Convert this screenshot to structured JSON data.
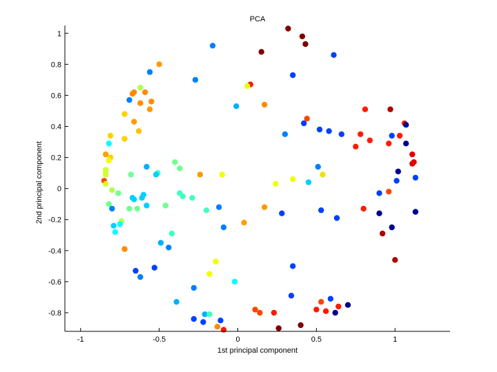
{
  "chart_data": {
    "type": "scatter",
    "title": "PCA",
    "xlabel": "1st principal component",
    "ylabel": "2nd principal component",
    "xlim": [
      -1.1,
      1.35
    ],
    "ylim": [
      -0.92,
      1.05
    ],
    "xticks": [
      -1,
      -0.5,
      0,
      0.5,
      1
    ],
    "yticks": [
      -0.8,
      -0.6,
      -0.4,
      -0.2,
      0,
      0.2,
      0.4,
      0.6,
      0.8,
      1
    ],
    "xtick_labels": [
      "-1",
      "-0.5",
      "0",
      "0.5",
      "1"
    ],
    "ytick_labels": [
      "-0.8",
      "-0.6",
      "-0.4",
      "-0.2",
      "0",
      "0.2",
      "0.4",
      "0.6",
      "0.8",
      "1"
    ],
    "grid": false,
    "colormap": "jet",
    "colors": {
      "dark_red": "#800000",
      "red": "#ff1a00",
      "orange_red": "#ff4500",
      "orange": "#ff9a00",
      "yellow": "#f0ff00",
      "cyan": "#00ffff",
      "light_blue": "#00b0ff",
      "blue": "#0040ff",
      "dark_blue": "#000090"
    },
    "points": [
      {
        "x": 0.32,
        "y": 1.03,
        "c": "#800000"
      },
      {
        "x": 0.41,
        "y": 0.98,
        "c": "#800000"
      },
      {
        "x": 0.43,
        "y": 0.93,
        "c": "#800000"
      },
      {
        "x": 0.15,
        "y": 0.88,
        "c": "#800000"
      },
      {
        "x": 0.61,
        "y": 0.86,
        "c": "#0040ff"
      },
      {
        "x": -0.16,
        "y": 0.92,
        "c": "#0080ff"
      },
      {
        "x": -0.5,
        "y": 0.8,
        "c": "#ff9a00"
      },
      {
        "x": -0.56,
        "y": 0.75,
        "c": "#0080ff"
      },
      {
        "x": -0.27,
        "y": 0.7,
        "c": "#0080ff"
      },
      {
        "x": 0.35,
        "y": 0.73,
        "c": "#0040ff"
      },
      {
        "x": 0.08,
        "y": 0.67,
        "c": "#ff1a00"
      },
      {
        "x": 0.06,
        "y": 0.66,
        "c": "#f0ff00"
      },
      {
        "x": -0.62,
        "y": 0.65,
        "c": "#b0ff50"
      },
      {
        "x": -0.66,
        "y": 0.62,
        "c": "#ff8a00"
      },
      {
        "x": -0.67,
        "y": 0.61,
        "c": "#ff8a00"
      },
      {
        "x": -0.59,
        "y": 0.62,
        "c": "#ff8a00"
      },
      {
        "x": -0.69,
        "y": 0.57,
        "c": "#0080ff"
      },
      {
        "x": -0.55,
        "y": 0.56,
        "c": "#ff8a00"
      },
      {
        "x": -0.62,
        "y": 0.55,
        "c": "#ff8a00"
      },
      {
        "x": -0.56,
        "y": 0.51,
        "c": "#ff9a00"
      },
      {
        "x": -0.01,
        "y": 0.53,
        "c": "#00b0ff"
      },
      {
        "x": 0.17,
        "y": 0.54,
        "c": "#ff8a00"
      },
      {
        "x": 0.81,
        "y": 0.51,
        "c": "#ff1a00"
      },
      {
        "x": 0.97,
        "y": 0.51,
        "c": "#b00000"
      },
      {
        "x": -0.72,
        "y": 0.48,
        "c": "#ffd000"
      },
      {
        "x": 0.44,
        "y": 0.45,
        "c": "#ff4500"
      },
      {
        "x": -0.66,
        "y": 0.43,
        "c": "#ff9a00"
      },
      {
        "x": 0.42,
        "y": 0.42,
        "c": "#0040ff"
      },
      {
        "x": 1.06,
        "y": 0.42,
        "c": "#ff1a00"
      },
      {
        "x": 1.07,
        "y": 0.41,
        "c": "#000090"
      },
      {
        "x": 0.52,
        "y": 0.38,
        "c": "#0040ff"
      },
      {
        "x": 0.58,
        "y": 0.37,
        "c": "#0040ff"
      },
      {
        "x": -0.63,
        "y": 0.37,
        "c": "#ffc000"
      },
      {
        "x": 0.78,
        "y": 0.35,
        "c": "#ff1a00"
      },
      {
        "x": 0.3,
        "y": 0.35,
        "c": "#0080ff"
      },
      {
        "x": 0.66,
        "y": 0.35,
        "c": "#0040ff"
      },
      {
        "x": 0.98,
        "y": 0.34,
        "c": "#0040ff"
      },
      {
        "x": 1.03,
        "y": 0.34,
        "c": "#ff1a00"
      },
      {
        "x": -0.81,
        "y": 0.34,
        "c": "#ffd000"
      },
      {
        "x": -0.72,
        "y": 0.32,
        "c": "#ffd000"
      },
      {
        "x": 0.84,
        "y": 0.31,
        "c": "#ff1a00"
      },
      {
        "x": 0.96,
        "y": 0.29,
        "c": "#ff1a00"
      },
      {
        "x": 1.07,
        "y": 0.29,
        "c": "#000090"
      },
      {
        "x": -0.82,
        "y": 0.29,
        "c": "#00ffff"
      },
      {
        "x": 0.75,
        "y": 0.27,
        "c": "#ff1a00"
      },
      {
        "x": -0.84,
        "y": 0.22,
        "c": "#ffa000"
      },
      {
        "x": 1.11,
        "y": 0.22,
        "c": "#e00000"
      },
      {
        "x": -0.81,
        "y": 0.2,
        "c": "#ffd000"
      },
      {
        "x": -0.82,
        "y": 0.18,
        "c": "#f0ff00"
      },
      {
        "x": -0.4,
        "y": 0.17,
        "c": "#70ff90"
      },
      {
        "x": 1.12,
        "y": 0.17,
        "c": "#e00000"
      },
      {
        "x": 1.11,
        "y": 0.16,
        "c": "#e00000"
      },
      {
        "x": -0.58,
        "y": 0.14,
        "c": "#00b0ff"
      },
      {
        "x": 0.51,
        "y": 0.14,
        "c": "#0080ff"
      },
      {
        "x": -0.37,
        "y": 0.13,
        "c": "#70ff90"
      },
      {
        "x": -0.84,
        "y": 0.12,
        "c": "#d0ff30"
      },
      {
        "x": 1.02,
        "y": 0.11,
        "c": "#000090"
      },
      {
        "x": -0.84,
        "y": 0.1,
        "c": "#d0ff30"
      },
      {
        "x": -0.51,
        "y": 0.1,
        "c": "#40ffc0"
      },
      {
        "x": -0.52,
        "y": 0.09,
        "c": "#00d0ff"
      },
      {
        "x": -0.68,
        "y": 0.09,
        "c": "#70ff90"
      },
      {
        "x": -0.84,
        "y": 0.09,
        "c": "#d0ff30"
      },
      {
        "x": 0.54,
        "y": 0.09,
        "c": "#f0e000"
      },
      {
        "x": -0.24,
        "y": 0.09,
        "c": "#ff9a00"
      },
      {
        "x": -0.1,
        "y": 0.09,
        "c": "#f0ff00"
      },
      {
        "x": 0.35,
        "y": 0.06,
        "c": "#f0ff00"
      },
      {
        "x": -0.85,
        "y": 0.05,
        "c": "#ff4500"
      },
      {
        "x": 1.01,
        "y": 0.05,
        "c": "#0040ff"
      },
      {
        "x": 0.45,
        "y": 0.04,
        "c": "#00d0ff"
      },
      {
        "x": 0.24,
        "y": 0.03,
        "c": "#f0ff00"
      },
      {
        "x": -0.84,
        "y": 0.03,
        "c": "#d0ff30"
      },
      {
        "x": -0.8,
        "y": -0.01,
        "c": "#b0ff50"
      },
      {
        "x": 0.96,
        "y": -0.02,
        "c": "#ff4500"
      },
      {
        "x": -0.76,
        "y": -0.03,
        "c": "#70ff90"
      },
      {
        "x": -0.37,
        "y": -0.03,
        "c": "#40ffc0"
      },
      {
        "x": -0.35,
        "y": -0.05,
        "c": "#40ffc0"
      },
      {
        "x": 0.9,
        "y": -0.03,
        "c": "#0040ff"
      },
      {
        "x": 1.13,
        "y": 0.07,
        "c": "#0040ff"
      },
      {
        "x": -0.6,
        "y": -0.04,
        "c": "#00d0ff"
      },
      {
        "x": -0.67,
        "y": -0.06,
        "c": "#00d0ff"
      },
      {
        "x": -0.66,
        "y": -0.07,
        "c": "#00d0ff"
      },
      {
        "x": -0.61,
        "y": -0.06,
        "c": "#00d0ff"
      },
      {
        "x": -0.29,
        "y": -0.06,
        "c": "#40ffc0"
      },
      {
        "x": -0.82,
        "y": -0.1,
        "c": "#70ff90"
      },
      {
        "x": -0.58,
        "y": -0.11,
        "c": "#00d0ff"
      },
      {
        "x": -0.46,
        "y": -0.11,
        "c": "#70ff90"
      },
      {
        "x": -0.69,
        "y": -0.13,
        "c": "#70ff90"
      },
      {
        "x": -0.64,
        "y": -0.13,
        "c": "#70ff90"
      },
      {
        "x": -0.8,
        "y": -0.13,
        "c": "#0080ff"
      },
      {
        "x": -0.12,
        "y": -0.12,
        "c": "#0080ff"
      },
      {
        "x": 0.17,
        "y": -0.12,
        "c": "#ff9a00"
      },
      {
        "x": 0.8,
        "y": -0.13,
        "c": "#ff1a00"
      },
      {
        "x": 0.53,
        "y": -0.14,
        "c": "#0040ff"
      },
      {
        "x": -0.2,
        "y": -0.14,
        "c": "#40ffc0"
      },
      {
        "x": 1.13,
        "y": -0.15,
        "c": "#000090"
      },
      {
        "x": 0.9,
        "y": -0.16,
        "c": "#000090"
      },
      {
        "x": 0.28,
        "y": -0.16,
        "c": "#0040ff"
      },
      {
        "x": 0.63,
        "y": -0.19,
        "c": "#0040ff"
      },
      {
        "x": -0.74,
        "y": -0.21,
        "c": "#b0ff50"
      },
      {
        "x": 0.04,
        "y": -0.22,
        "c": "#ffa000"
      },
      {
        "x": -0.75,
        "y": -0.23,
        "c": "#00ffff"
      },
      {
        "x": -0.79,
        "y": -0.24,
        "c": "#00d0ff"
      },
      {
        "x": -0.09,
        "y": -0.25,
        "c": "#0080ff"
      },
      {
        "x": 0.98,
        "y": -0.25,
        "c": "#000090"
      },
      {
        "x": -0.78,
        "y": -0.28,
        "c": "#00ffff"
      },
      {
        "x": 0.92,
        "y": -0.29,
        "c": "#b00000"
      },
      {
        "x": -0.42,
        "y": -0.29,
        "c": "#40ffc0"
      },
      {
        "x": -0.49,
        "y": -0.35,
        "c": "#00b0ff"
      },
      {
        "x": -0.44,
        "y": -0.38,
        "c": "#0080ff"
      },
      {
        "x": -0.72,
        "y": -0.39,
        "c": "#ff8a00"
      },
      {
        "x": 1.0,
        "y": -0.46,
        "c": "#b00000"
      },
      {
        "x": -0.14,
        "y": -0.47,
        "c": "#f0ff00"
      },
      {
        "x": 0.35,
        "y": -0.5,
        "c": "#0040ff"
      },
      {
        "x": -0.53,
        "y": -0.51,
        "c": "#0040ff"
      },
      {
        "x": -0.65,
        "y": -0.53,
        "c": "#0040ff"
      },
      {
        "x": -0.18,
        "y": -0.55,
        "c": "#f0ff00"
      },
      {
        "x": -0.62,
        "y": -0.57,
        "c": "#0080ff"
      },
      {
        "x": -0.02,
        "y": -0.6,
        "c": "#00ffff"
      },
      {
        "x": -0.28,
        "y": -0.64,
        "c": "#0080ff"
      },
      {
        "x": 0.34,
        "y": -0.69,
        "c": "#0040ff"
      },
      {
        "x": 0.59,
        "y": -0.71,
        "c": "#0040ff"
      },
      {
        "x": 0.53,
        "y": -0.73,
        "c": "#ff4500"
      },
      {
        "x": -0.39,
        "y": -0.73,
        "c": "#00b0ff"
      },
      {
        "x": 0.7,
        "y": -0.75,
        "c": "#000090"
      },
      {
        "x": 0.64,
        "y": -0.76,
        "c": "#ff1a00"
      },
      {
        "x": 0.11,
        "y": -0.78,
        "c": "#ff4500"
      },
      {
        "x": 0.5,
        "y": -0.78,
        "c": "#ff1a00"
      },
      {
        "x": 0.56,
        "y": -0.79,
        "c": "#ff1a00"
      },
      {
        "x": 0.62,
        "y": -0.8,
        "c": "#000090"
      },
      {
        "x": 0.14,
        "y": -0.8,
        "c": "#ff4500"
      },
      {
        "x": 0.23,
        "y": -0.8,
        "c": "#ff1a00"
      },
      {
        "x": -0.21,
        "y": -0.81,
        "c": "#00b0ff"
      },
      {
        "x": -0.18,
        "y": -0.81,
        "c": "#40ffc0"
      },
      {
        "x": -0.28,
        "y": -0.84,
        "c": "#0040ff"
      },
      {
        "x": -0.22,
        "y": -0.86,
        "c": "#0040ff"
      },
      {
        "x": -0.11,
        "y": -0.85,
        "c": "#0040ff"
      },
      {
        "x": 0.4,
        "y": -0.88,
        "c": "#800000"
      },
      {
        "x": -0.13,
        "y": -0.89,
        "c": "#ff8a00"
      },
      {
        "x": 0.26,
        "y": -0.9,
        "c": "#800000"
      },
      {
        "x": -0.09,
        "y": -0.91,
        "c": "#ff1a00"
      }
    ]
  }
}
